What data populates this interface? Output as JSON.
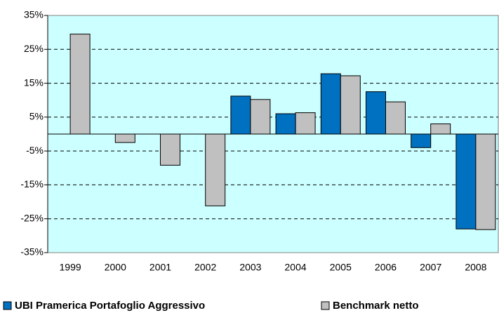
{
  "chart_data": {
    "type": "bar",
    "categories": [
      "1999",
      "2000",
      "2001",
      "2002",
      "2003",
      "2004",
      "2005",
      "2006",
      "2007",
      "2008"
    ],
    "series": [
      {
        "name": "UBI Pramerica Portafoglio Aggressivo",
        "color": "#0070c0",
        "values": [
          null,
          null,
          null,
          null,
          11.2,
          6.0,
          17.8,
          12.5,
          -4.0,
          -28.0
        ]
      },
      {
        "name": "Benchmark netto",
        "color": "#c0c0c0",
        "values": [
          29.5,
          -2.5,
          -9.2,
          -21.2,
          10.2,
          6.3,
          17.2,
          9.5,
          3.0,
          -28.2
        ]
      }
    ],
    "ylim": [
      -35,
      35
    ],
    "yticks": [
      {
        "value": -35,
        "label": "-35%"
      },
      {
        "value": -25,
        "label": "-25%"
      },
      {
        "value": -15,
        "label": "-15%"
      },
      {
        "value": -5,
        "label": "-5%"
      },
      {
        "value": 5,
        "label": "5%"
      },
      {
        "value": 15,
        "label": "15%"
      },
      {
        "value": 25,
        "label": "25%"
      },
      {
        "value": 35,
        "label": "35%"
      }
    ],
    "grid": true,
    "plot_background": "#ccffff"
  }
}
